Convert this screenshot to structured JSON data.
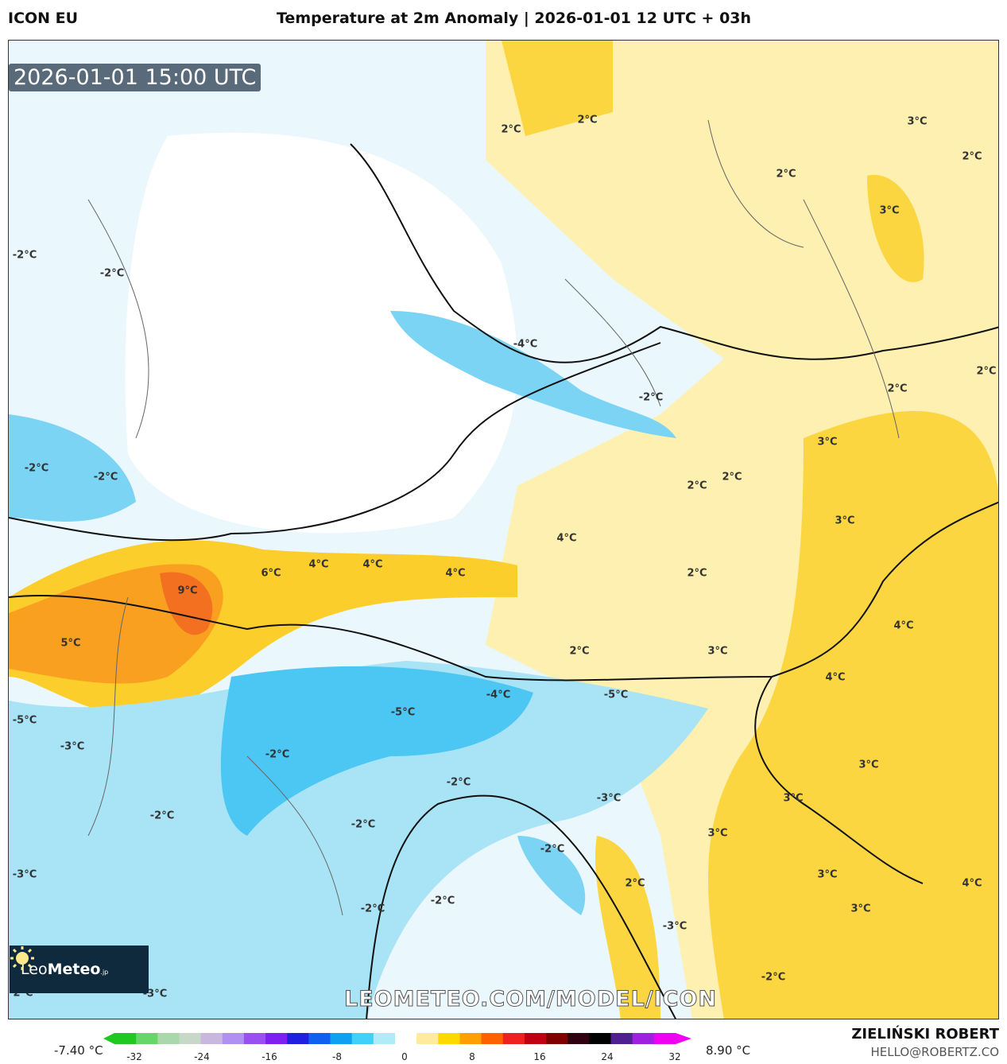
{
  "header": {
    "model": "ICON EU",
    "title": "Temperature at 2m Anomaly | 2026-01-01 12 UTC + 03h"
  },
  "map": {
    "timestamp": "2026-01-01 15:00 UTC",
    "watermark": "LEOMETEO.COM/MODEL/ICON",
    "logo": {
      "brand_light": "Leo",
      "brand_bold": "Meteo",
      "suffix": ".jp",
      "icon": "sun-icon"
    },
    "contour_labels": [
      "2°C",
      "2°C",
      "3°C",
      "2°C",
      "2°C",
      "3°C",
      "-2°C",
      "-2°C",
      "-4°C",
      "-2°C",
      "2°C",
      "2°C",
      "3°C",
      "-2°C",
      "-2°C",
      "2°C",
      "2°C",
      "3°C",
      "4°C",
      "6°C",
      "4°C",
      "4°C",
      "4°C",
      "2°C",
      "9°C",
      "5°C",
      "2°C",
      "3°C",
      "4°C",
      "4°C",
      "-5°C",
      "-4°C",
      "-5°C",
      "-2°C",
      "-3°C",
      "-5°C",
      "-2°C",
      "-2°C",
      "-3°C",
      "3°C",
      "3°C",
      "3°C",
      "-2°C",
      "-2°C",
      "-2°C",
      "-2°C",
      "-3°C",
      "3°C",
      "3°C",
      "2°C",
      "4°C",
      "-3°C",
      "-2°C",
      "2°C",
      "-3°C"
    ]
  },
  "colorbar": {
    "min_label": "-7.40 °C",
    "max_label": "8.90 °C",
    "ticks": [
      "-32",
      "-24",
      "-16",
      "-8",
      "0",
      "8",
      "16",
      "24",
      "32"
    ],
    "colors": [
      "#22c822",
      "#66d666",
      "#aad8aa",
      "#c8d8c8",
      "#c8b8e0",
      "#b090f0",
      "#9a50f0",
      "#8020f0",
      "#2020e0",
      "#1060f0",
      "#10a0f0",
      "#40d0f8",
      "#b0ecf8",
      "#ffffff",
      "#ffeaa0",
      "#ffd800",
      "#ffa000",
      "#ff6000",
      "#f02020",
      "#c00010",
      "#800000",
      "#300010",
      "#000000",
      "#502090",
      "#a020e0",
      "#f000f0"
    ]
  },
  "footer": {
    "author": "ZIELIŃSKI ROBERT",
    "email": "HELLO@ROBERTZ.CO"
  }
}
